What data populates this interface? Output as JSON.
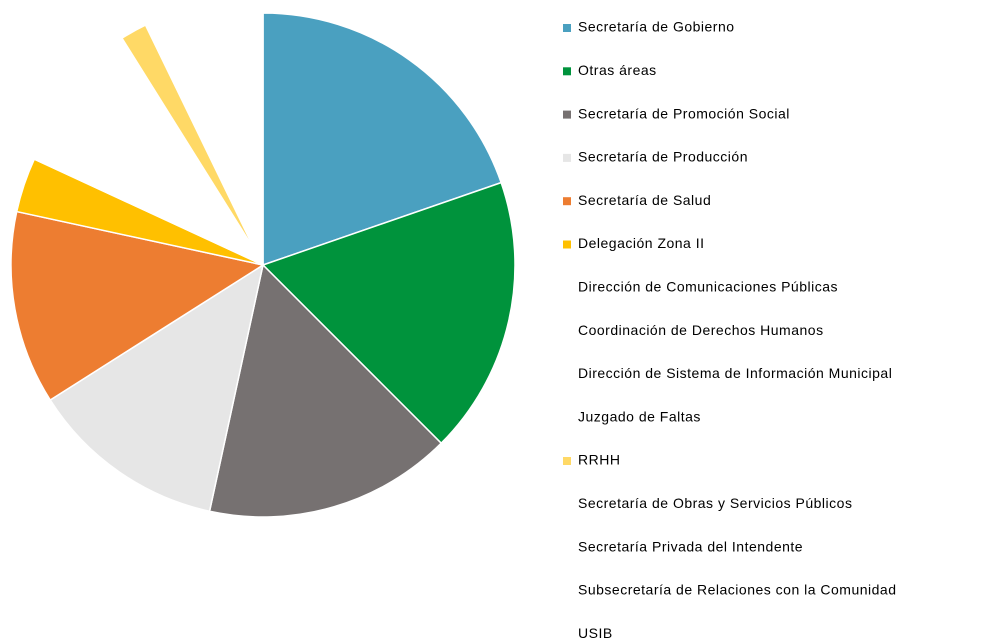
{
  "chart_data": {
    "type": "pie",
    "categories": [
      "Secretaría de Gobierno",
      "Otras áreas",
      "Secretaría de Promoción Social",
      "Secretaría de Producción",
      "Secretaría de Salud",
      "Delegación Zona II",
      "Dirección de Comunicaciones Públicas",
      "Coordinación de Derechos Humanos",
      "Dirección de Sistema de Información Municipal",
      "Juzgado de Faltas",
      "RRHH",
      "Secretaría de Obras y Servicios Públicos",
      "Secretaría Privada del Intendente",
      "Subsecretaría de Relaciones con la Comunidad",
      "USIB"
    ],
    "values": [
      19.7,
      17.8,
      15.9,
      12.6,
      12.4,
      3.5,
      2.3,
      2.3,
      2.3,
      2.3,
      1.7,
      1.8,
      1.8,
      1.8,
      1.8
    ],
    "colors": [
      "#4aa0c0",
      "#00933c",
      "#767171",
      "#e6e6e6",
      "#ed7d31",
      "#ffc000",
      "#ffffff",
      "#ffffff",
      "#ffffff",
      "#ffffff",
      "#ffd966",
      "#ffffff",
      "#ffffff",
      "#ffffff",
      "#ffffff"
    ],
    "explode": [
      0,
      0,
      0,
      0,
      0,
      0,
      0,
      0,
      0,
      0,
      0.06,
      0,
      0,
      0,
      0
    ],
    "legend": "right"
  }
}
